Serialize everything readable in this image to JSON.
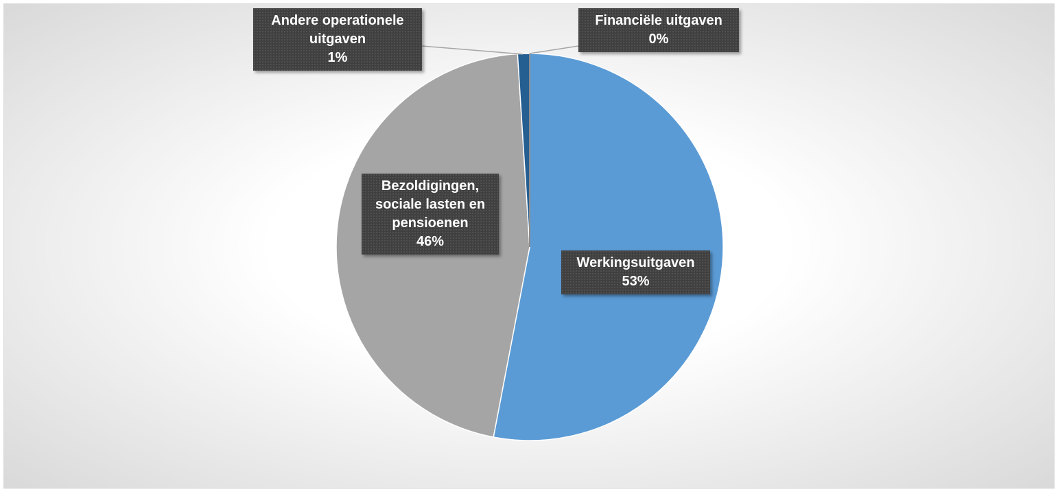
{
  "chart_data": {
    "type": "pie",
    "categories": [
      "Werkingsuitgaven",
      "Bezoldigingen, sociale lasten en pensioenen",
      "Andere operationele uitgaven",
      "Financiële uitgaven"
    ],
    "values": [
      53,
      46,
      1,
      0
    ],
    "value_labels": [
      "53%",
      "46%",
      "1%",
      "0%"
    ],
    "colors": [
      "#5b9bd5",
      "#a5a5a5",
      "#255e91",
      "#8c8c8c"
    ]
  }
}
